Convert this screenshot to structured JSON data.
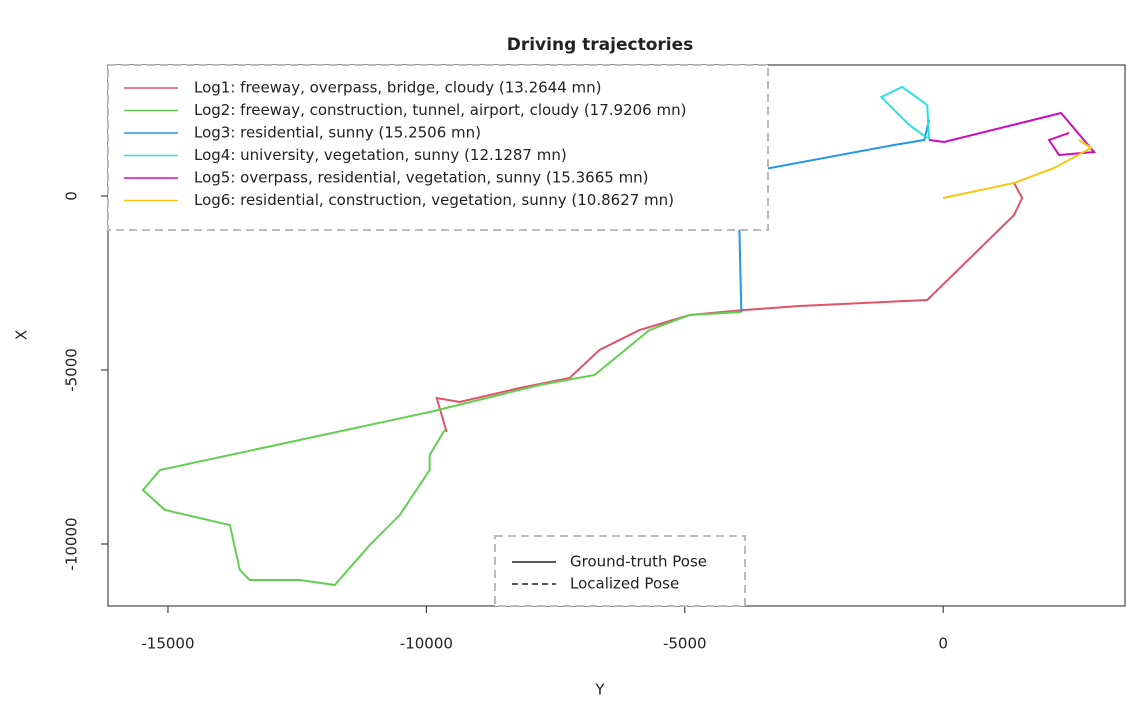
{
  "chart_data": {
    "type": "line",
    "title": "Driving trajectories",
    "x_label": "Y",
    "y_label": "X",
    "xlim": [
      -16160,
      3518
    ],
    "ylim": [
      -11782,
      3764
    ],
    "xticks": [
      -15000,
      -10000,
      -5000,
      0
    ],
    "yticks": [
      -10000,
      -5000,
      0
    ],
    "legend": "topleft",
    "series": [
      {
        "name": "Log1: freeway, overpass, bridge, cloudy (13.2644 mn)",
        "color": "#DF536B",
        "x": [
          1372,
          1527,
          1372,
          -309,
          -2784,
          -3847,
          -4910,
          -5876,
          -6650,
          -7229,
          -8196,
          -9356,
          -9800,
          -9607
        ],
        "values": [
          374,
          -57,
          -546,
          -2989,
          -3161,
          -3276,
          -3420,
          -3851,
          -4426,
          -5230,
          -5518,
          -5920,
          -5805,
          -6783
        ]
      },
      {
        "name": "Log2: freeway, construction, tunnel, airport, cloudy (17.9206 mn)",
        "color": "#61D04F",
        "x": [
          -3905,
          -4910,
          -5683,
          -6746,
          -7809,
          -9936,
          -15155,
          -15484,
          -15058,
          -13802,
          -13609,
          -13416,
          -12449,
          -11773,
          -11096,
          -10516,
          -9936,
          -9936,
          -9646
        ],
        "values": [
          -3334,
          -3420,
          -3851,
          -5144,
          -5432,
          -6208,
          -7875,
          -8450,
          -9024,
          -9455,
          -10749,
          -11036,
          -11036,
          -11180,
          -10030,
          -9168,
          -7875,
          -7444,
          -6725
        ]
      },
      {
        "name": "Log3: residential, sunny (15.2506 mn)",
        "color": "#2297E6",
        "x": [
          -3905,
          -3943,
          -3943,
          -3557,
          -947,
          -367,
          -271
        ],
        "values": [
          -3334,
          -977,
          604,
          747,
          1466,
          1609,
          2184
        ]
      },
      {
        "name": "Log4: university, vegetation, sunny (12.1287 mn)",
        "color": "#28E2E5",
        "x": [
          -271,
          -309,
          -793,
          -1198,
          -657,
          -309
        ],
        "values": [
          1609,
          2615,
          3133,
          2845,
          2040,
          1667
        ]
      },
      {
        "name": "Log5: overpass, residential, vegetation, sunny (15.3665 mn)",
        "color": "#CD0BBC",
        "x": [
          -271,
          19,
          2281,
          2919,
          2242,
          2049,
          2436
        ],
        "values": [
          1609,
          1552,
          2385,
          1264,
          1178,
          1609,
          1811
        ]
      },
      {
        "name": "Log6: residential, construction, vegetation, sunny (10.8627 mn)",
        "color": "#F5C710",
        "x": [
          0,
          1372,
          2146,
          2861,
          2629
        ],
        "values": [
          -57,
          374,
          805,
          1380,
          1609
        ]
      }
    ],
    "line_legend": [
      {
        "name": "Ground-truth Pose",
        "dash": "solid"
      },
      {
        "name": "Localized Pose",
        "dash": "dashed"
      }
    ]
  }
}
